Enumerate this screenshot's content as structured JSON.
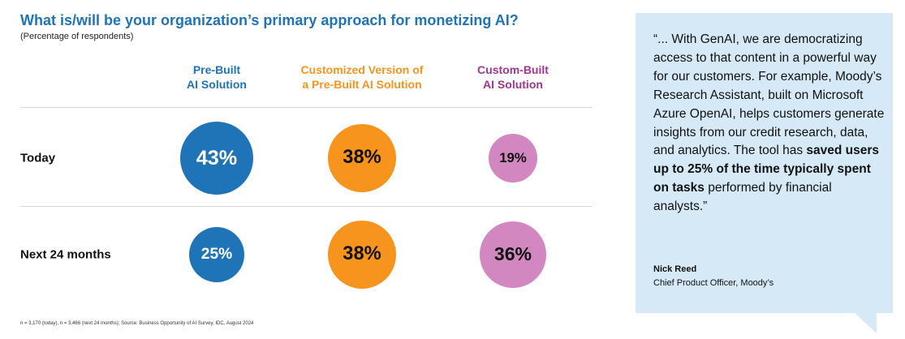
{
  "chart_data": {
    "type": "bubble",
    "title": "What is/will be your organization’s primary approach for monetizing AI?",
    "subtitle": "(Percentage of respondents)",
    "columns": [
      {
        "label_line1": "Pre-Built",
        "label_line2": "AI Solution",
        "color": "#1f73b7"
      },
      {
        "label_line1": "Customized Version of",
        "label_line2": "a Pre-Built AI Solution",
        "color": "#f7941d"
      },
      {
        "label_line1": "Custom-Built",
        "label_line2": "AI Solution",
        "color": "#a0358f"
      }
    ],
    "rows": [
      {
        "label": "Today",
        "values": [
          43,
          38,
          19
        ],
        "value_labels": [
          "43%",
          "38%",
          "19%"
        ]
      },
      {
        "label": "Next 24 months",
        "values": [
          25,
          38,
          36
        ],
        "value_labels": [
          "25%",
          "38%",
          "36%"
        ]
      }
    ],
    "bubble_colors": [
      "#1f73b7",
      "#f7941d",
      "#d387c0"
    ],
    "value_text_colors": [
      "#ffffff",
      "#111111",
      "#111111"
    ],
    "footnote": "n = 3,170 (today), n = 3,466 (next 24 months); Source: Business Opportunity of AI Survey, IDC, August 2024"
  },
  "quote": {
    "text_before": "“... With GenAI, we are democratizing access to that content in a powerful way for our customers. For example, Moody’s Research Assistant, built on Microsoft Azure OpenAI, helps customers generate insights from our credit research, data, and analytics. The tool has ",
    "text_bold": "saved users up to 25% of the time typically spent on tasks",
    "text_after": " performed by financial analysts.”",
    "name": "Nick Reed",
    "role": "Chief Product Officer, Moody’s",
    "background": "#d6e9f6"
  }
}
